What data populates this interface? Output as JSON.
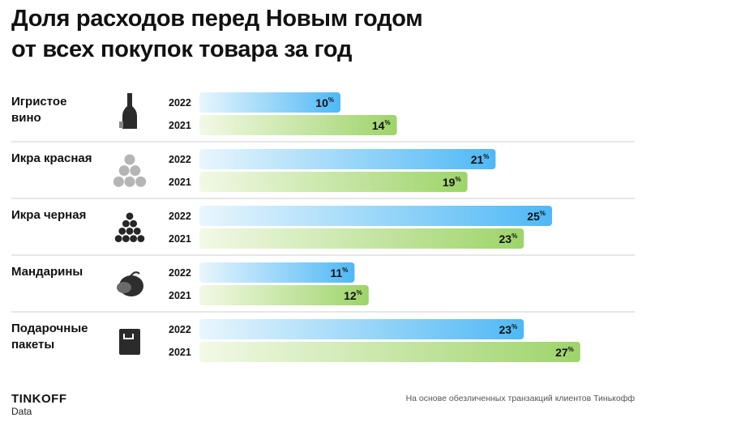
{
  "title_line1": "Доля расходов перед Новым годом",
  "title_line2": "от всех покупок товара за год",
  "brand": "TINKOFF",
  "brand_sub": "Data",
  "note": "На основе обезличенных транзакций клиентов Тинькофф",
  "colors": {
    "2022": "#4fb8f5",
    "2021": "#9ed46a"
  },
  "chart_data": {
    "type": "bar",
    "orientation": "horizontal",
    "unit": "%",
    "categories": [
      {
        "label": [
          "Игристое",
          "вино"
        ],
        "icon": "champagne-bottle-icon"
      },
      {
        "label": [
          "Икра красная"
        ],
        "icon": "red-caviar-icon"
      },
      {
        "label": [
          "Икра черная"
        ],
        "icon": "black-caviar-icon"
      },
      {
        "label": [
          "Мандарины"
        ],
        "icon": "mandarin-icon"
      },
      {
        "label": [
          "Подарочные",
          "пакеты"
        ],
        "icon": "gift-bag-icon"
      }
    ],
    "series": [
      {
        "name": "2022",
        "values": [
          10,
          21,
          25,
          11,
          23
        ]
      },
      {
        "name": "2021",
        "values": [
          14,
          19,
          23,
          12,
          27
        ]
      }
    ],
    "xlim": [
      0,
      27
    ]
  }
}
